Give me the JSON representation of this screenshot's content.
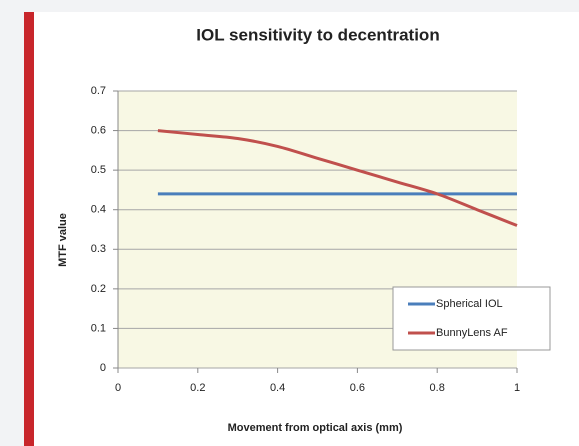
{
  "chart_data": {
    "type": "line",
    "title": "IOL sensitivity to decentration",
    "x_label": "Movement from optical axis (mm)",
    "y_label": "MTF value",
    "x": [
      0.1,
      0.2,
      0.3,
      0.4,
      0.5,
      0.6,
      0.7,
      0.8,
      0.9,
      1
    ],
    "series": [
      {
        "name": "Spherical IOL",
        "color": "#4a7ebb",
        "values": [
          0.44,
          0.44,
          0.44,
          0.44,
          0.44,
          0.44,
          0.44,
          0.44,
          0.44,
          0.44
        ]
      },
      {
        "name": "BunnyLens AF",
        "color": "#c0504d",
        "values": [
          0.6,
          0.59,
          0.58,
          0.56,
          0.53,
          0.5,
          0.47,
          0.44,
          0.4,
          0.36
        ]
      }
    ],
    "xlim": [
      0,
      1
    ],
    "xticks": [
      0,
      0.2,
      0.4,
      0.6,
      0.8,
      1
    ],
    "ylim": [
      0,
      0.7
    ],
    "yticks": [
      0,
      0.1,
      0.2,
      0.3,
      0.4,
      0.5,
      0.6,
      0.7
    ],
    "grid": true,
    "legend": "lower right"
  }
}
